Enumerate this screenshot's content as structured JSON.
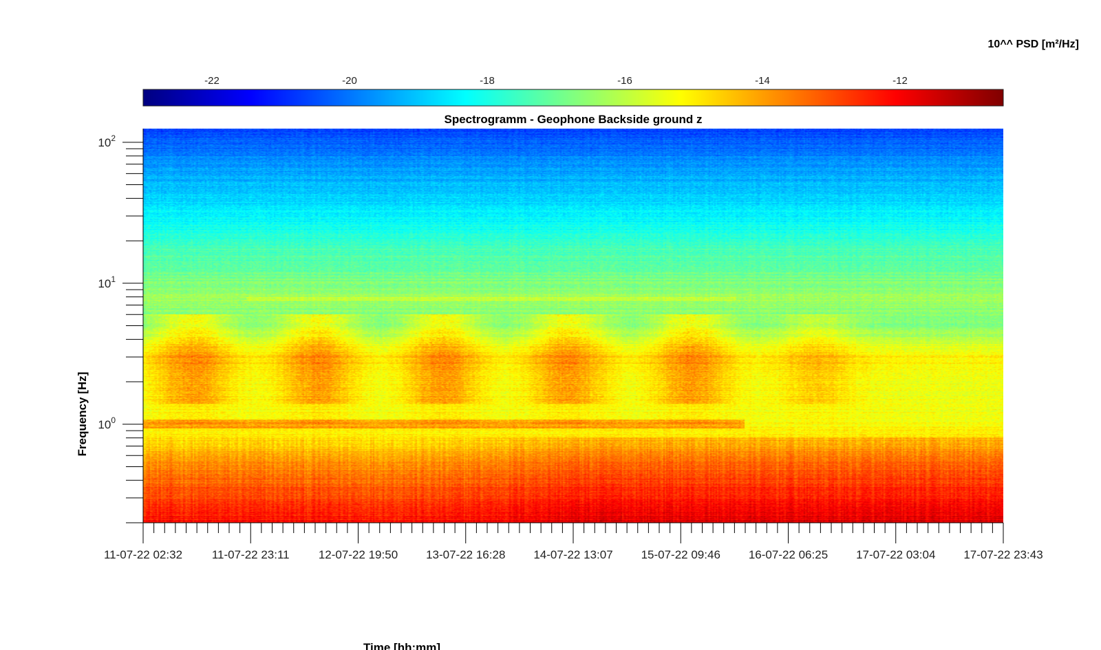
{
  "chart_data": {
    "type": "heatmap",
    "title": "Spectrogramm - Geophone Backside ground z",
    "xlabel": "Time [hh:mm]",
    "ylabel": "Frequency [Hz]",
    "x_ticks": [
      "11-07-22 02:32",
      "11-07-22 23:11",
      "12-07-22 19:50",
      "13-07-22 16:28",
      "14-07-22 13:07",
      "15-07-22 09:46",
      "16-07-22 06:25",
      "17-07-22 03:04",
      "17-07-22 23:43"
    ],
    "xlim": [
      "11-07-22 02:32",
      "17-07-22 23:43"
    ],
    "y_scale": "log",
    "ylim": [
      0.2,
      125
    ],
    "y_ticks": [
      {
        "value": 1,
        "base": "10",
        "exp": "0"
      },
      {
        "value": 10,
        "base": "10",
        "exp": "1"
      },
      {
        "value": 100,
        "base": "10",
        "exp": "2"
      }
    ],
    "colorbar": {
      "label": "10^^ PSD [m²/Hz]",
      "placement": "top",
      "colormap": "jet",
      "range": [
        -23,
        -10.5
      ],
      "ticks": [
        "-22",
        "-20",
        "-18",
        "-16",
        "-14",
        "-12"
      ],
      "tick_values": [
        -22,
        -20,
        -18,
        -16,
        -14,
        -12
      ]
    },
    "psd_profile_log10": [
      {
        "freq": 0.2,
        "psd": -12.2
      },
      {
        "freq": 0.3,
        "psd": -12.9
      },
      {
        "freq": 0.5,
        "psd": -13.7
      },
      {
        "freq": 0.7,
        "psd": -14.5
      },
      {
        "freq": 1.0,
        "psd": -15.3
      },
      {
        "freq": 2.0,
        "psd": -15.4
      },
      {
        "freq": 3.0,
        "psd": -15.0
      },
      {
        "freq": 5.0,
        "psd": -16.8
      },
      {
        "freq": 8.0,
        "psd": -16.4
      },
      {
        "freq": 15.0,
        "psd": -17.3
      },
      {
        "freq": 30.0,
        "psd": -18.4
      },
      {
        "freq": 60.0,
        "psd": -19.4
      },
      {
        "freq": 125.0,
        "psd": -20.6
      }
    ],
    "daily_activity_centers": [
      "11-07-22 12:00",
      "12-07-22 12:00",
      "13-07-22 12:00",
      "14-07-22 12:00",
      "15-07-22 12:00",
      "16-07-22 12:00"
    ]
  }
}
